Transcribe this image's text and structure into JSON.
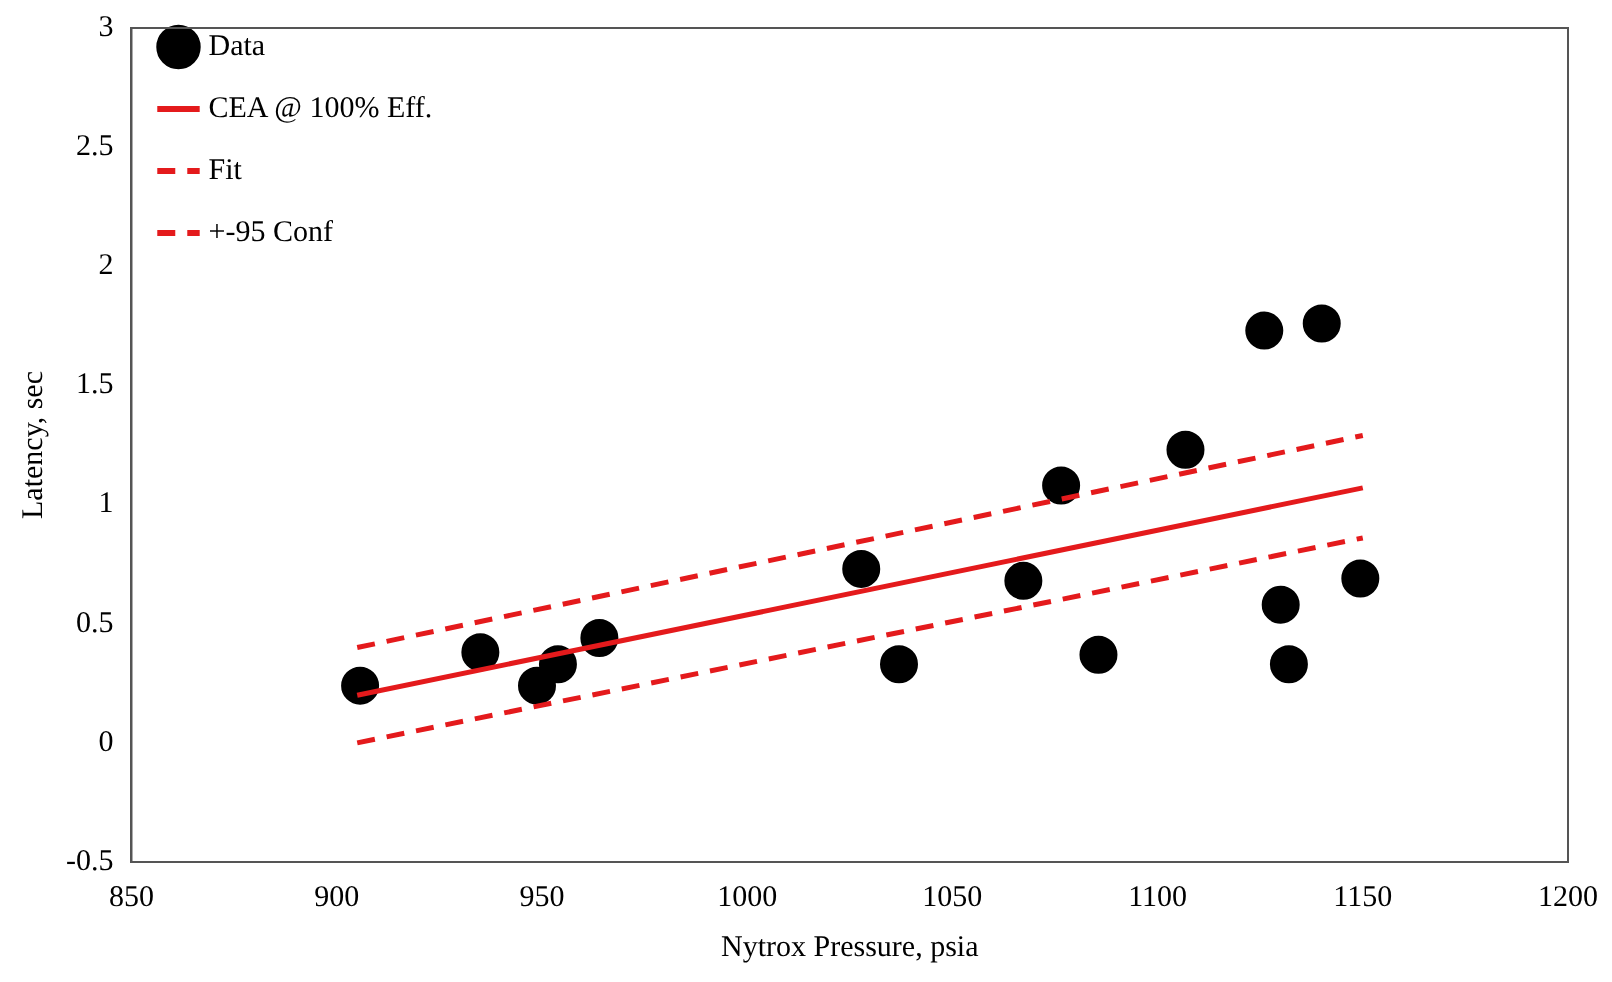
{
  "chart_data": {
    "type": "scatter",
    "xlabel": "Nytrox Pressure, psia",
    "ylabel": "Latency, sec",
    "xlim": [
      850,
      1200
    ],
    "ylim": [
      -0.5,
      3
    ],
    "xticks": [
      850,
      900,
      950,
      1000,
      1050,
      1100,
      1150,
      1200
    ],
    "yticks": [
      -0.5,
      0,
      0.5,
      1,
      1.5,
      2,
      2.5,
      3
    ],
    "grid": false,
    "legend": "top left",
    "series": [
      {
        "name": "Data",
        "marker": "circle",
        "color": "#000000",
        "x": [
          905.7,
          935,
          948.8,
          953.9,
          964,
          1027.8,
          1037,
          1067.3,
          1076.5,
          1085.6,
          1106.8,
          1126,
          1130,
          1132,
          1140,
          1149.4
        ],
        "values": [
          0.24,
          0.38,
          0.24,
          0.33,
          0.44,
          0.73,
          0.33,
          0.68,
          1.08,
          0.37,
          1.23,
          1.73,
          0.58,
          0.33,
          1.76,
          0.69
        ]
      },
      {
        "name": "CEA @ 100% Eff.",
        "type": "line",
        "line_style": "solid",
        "color": "#e41a1c",
        "x": [
          905,
          1150
        ],
        "values": [
          0.2,
          1.07
        ]
      },
      {
        "name": "Fit",
        "type": "line",
        "line_style": "dashed",
        "color": "#e41a1c",
        "values": [
          null,
          null
        ]
      },
      {
        "name": "+-95 Conf",
        "type": "line",
        "line_style": "dashed",
        "color": "#e41a1c",
        "x": [
          905,
          1150
        ],
        "values": [
          0.4,
          1.29
        ]
      },
      {
        "type": "line",
        "line_style": "dashed",
        "color": "#e41a1c",
        "x": [
          905,
          1150
        ],
        "values": [
          0,
          0.86
        ]
      }
    ]
  }
}
